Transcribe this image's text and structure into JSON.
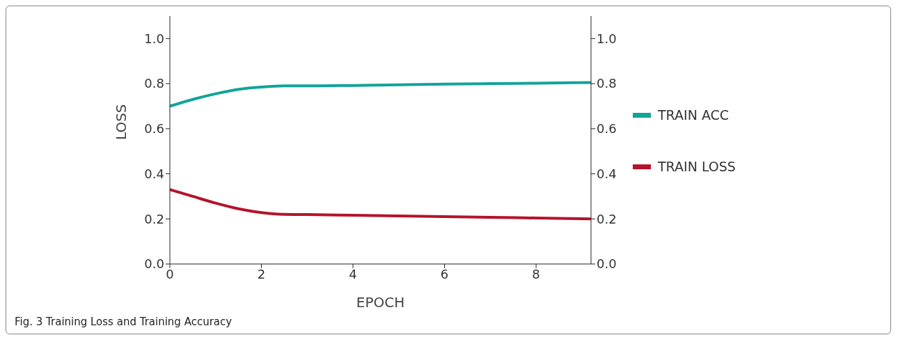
{
  "chart_data": {
    "type": "line",
    "xlabel": "EPOCH",
    "ylabel": "LOSS",
    "annotations": [
      "Fig. 3  Training Loss and Training Accuracy"
    ],
    "x": [
      0,
      0.5,
      1,
      1.5,
      2,
      2.5,
      3,
      4,
      5,
      6,
      7,
      8,
      9.2
    ],
    "series": [
      {
        "name": "TRAIN ACC",
        "color": "#12a39a",
        "values": [
          0.7,
          0.73,
          0.755,
          0.775,
          0.785,
          0.79,
          0.79,
          0.792,
          0.795,
          0.798,
          0.8,
          0.802,
          0.805
        ]
      },
      {
        "name": "TRAIN LOSS",
        "color": "#b5132b",
        "values": [
          0.33,
          0.3,
          0.27,
          0.245,
          0.228,
          0.22,
          0.219,
          0.216,
          0.213,
          0.21,
          0.207,
          0.204,
          0.2
        ]
      }
    ],
    "xlim": [
      0,
      9.2
    ],
    "xticks": [
      0,
      2,
      4,
      6,
      8
    ],
    "ylim": [
      0,
      1.1
    ],
    "yticks": [
      {
        "value": 0,
        "label": "0.0"
      },
      {
        "value": 0.2,
        "label": "0.2"
      },
      {
        "value": 0.4,
        "label": "0.4"
      },
      {
        "value": 0.6,
        "label": "0.6"
      },
      {
        "value": 0.8,
        "label": "0.8"
      },
      {
        "value": 1,
        "label": "1.0"
      }
    ],
    "y2lim": [
      0,
      1.1
    ],
    "y2ticks": [
      {
        "value": 0,
        "label": "0.0"
      },
      {
        "value": 0.2,
        "label": "0.2"
      },
      {
        "value": 0.4,
        "label": "0.4"
      },
      {
        "value": 0.6,
        "label": "0.6"
      },
      {
        "value": 0.8,
        "label": "0.8"
      },
      {
        "value": 1,
        "label": "1.0"
      }
    ],
    "legend": "right",
    "grid": false,
    "marker": "none",
    "line_style": "solid"
  }
}
